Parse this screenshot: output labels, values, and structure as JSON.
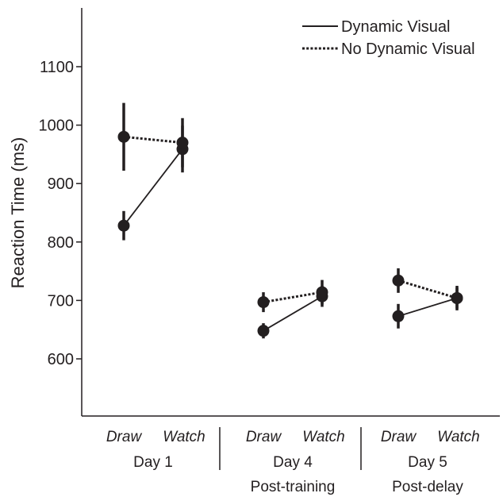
{
  "chart_data": {
    "type": "line",
    "ylabel": "Reaction Time (ms)",
    "xlabel": "",
    "ylim": [
      500,
      1200
    ],
    "yticks": [
      600,
      700,
      800,
      900,
      1000,
      1100
    ],
    "grid": false,
    "legend_position": "top-right",
    "conditions": [
      "Draw",
      "Watch"
    ],
    "groups": [
      {
        "label": "Day 1",
        "sublabel": ""
      },
      {
        "label": "Day 4",
        "sublabel": "Post-training"
      },
      {
        "label": "Day 5",
        "sublabel": "Post-delay"
      }
    ],
    "series": [
      {
        "name": "Dynamic Visual",
        "style": "solid",
        "points": [
          {
            "group": 0,
            "condition": "Draw",
            "y": 828,
            "err": 25
          },
          {
            "group": 0,
            "condition": "Watch",
            "y": 959,
            "err": 40
          },
          {
            "group": 1,
            "condition": "Draw",
            "y": 648,
            "err": 13
          },
          {
            "group": 1,
            "condition": "Watch",
            "y": 707,
            "err": 18
          },
          {
            "group": 2,
            "condition": "Draw",
            "y": 673,
            "err": 21
          },
          {
            "group": 2,
            "condition": "Watch",
            "y": 704,
            "err": 21
          }
        ]
      },
      {
        "name": "No Dynamic Visual",
        "style": "dotted",
        "points": [
          {
            "group": 0,
            "condition": "Draw",
            "y": 980,
            "err": 58
          },
          {
            "group": 0,
            "condition": "Watch",
            "y": 970,
            "err": 42
          },
          {
            "group": 1,
            "condition": "Draw",
            "y": 697,
            "err": 17
          },
          {
            "group": 1,
            "condition": "Watch",
            "y": 714,
            "err": 21
          },
          {
            "group": 2,
            "condition": "Draw",
            "y": 734,
            "err": 21
          },
          {
            "group": 2,
            "condition": "Watch",
            "y": 704,
            "err": 18
          }
        ]
      }
    ],
    "colors": {
      "ink": "#231f20",
      "background": "#ffffff"
    }
  }
}
